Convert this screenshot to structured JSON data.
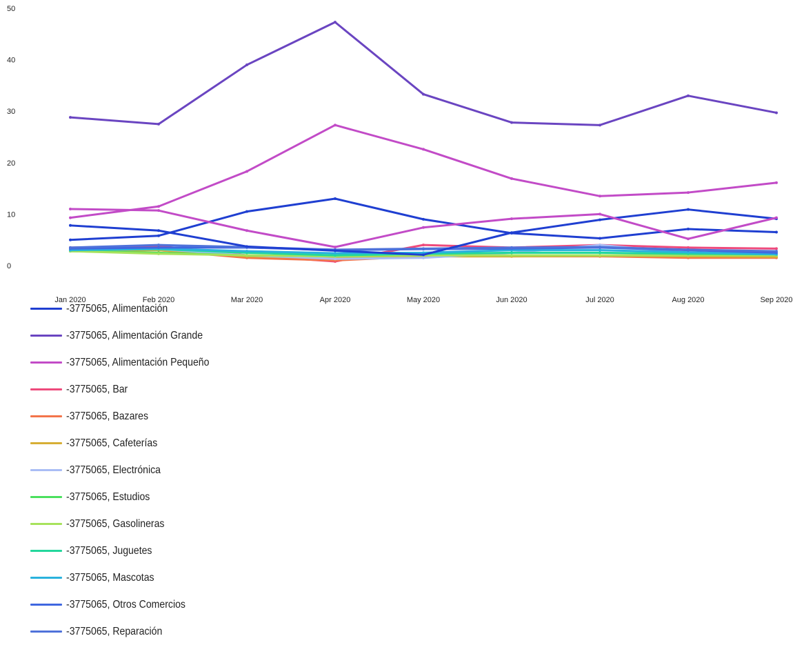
{
  "chart_data": {
    "type": "line",
    "title": "",
    "xlabel": "",
    "ylabel": "",
    "categories": [
      "Jan 2020",
      "Feb 2020",
      "Mar 2020",
      "Apr 2020",
      "May 2020",
      "Jun 2020",
      "Jul 2020",
      "Aug 2020",
      "Sep 2020"
    ],
    "y_ticks": [
      "0",
      "10",
      "20",
      "30",
      "40",
      "50"
    ],
    "ylim": [
      0,
      50
    ],
    "grid": false,
    "legend_position": "bottom-left",
    "series": [
      {
        "name": "-3775065, Alimentación",
        "color": "#1f3fd1",
        "values": [
          5,
          5.8,
          10.5,
          13,
          9,
          6.3,
          5.3,
          7.1,
          6.5
        ]
      },
      {
        "name": "-3775065, Alimentación Grande",
        "color": "#6a45c1",
        "values": [
          28.8,
          27.5,
          39,
          47.3,
          33.3,
          27.8,
          27.3,
          33,
          29.7
        ]
      },
      {
        "name": "-3775065, Alimentación Pequeño",
        "color": "#c24bc7",
        "values": [
          9.3,
          11.5,
          18.3,
          27.3,
          22.6,
          16.9,
          13.5,
          14.2,
          16.1
        ]
      },
      {
        "name": "-3775065, Bar",
        "color": "#ee4a7c",
        "values": [
          3.5,
          3.8,
          2,
          0.8,
          4,
          3.5,
          4,
          3.5,
          3.3
        ]
      },
      {
        "name": "-3775065, Bazares",
        "color": "#f3744a",
        "values": [
          3,
          3,
          1.5,
          1,
          1.8,
          1.8,
          1.8,
          1.5,
          1.5
        ]
      },
      {
        "name": "-3775065, Cafeterías",
        "color": "#d7ae35",
        "values": [
          2.8,
          3,
          1.8,
          1.5,
          1.8,
          1.8,
          1.9,
          1.8,
          1.7
        ]
      },
      {
        "name": "-3775065, Electrónica",
        "color": "#a9bdf5",
        "values": [
          3,
          3.2,
          2,
          1.3,
          1.5,
          2.5,
          4,
          2.5,
          2.2
        ]
      },
      {
        "name": "-3775065, Estudios",
        "color": "#4be05e",
        "values": [
          2.8,
          2.5,
          2,
          1.8,
          2,
          2,
          2,
          2,
          2
        ]
      },
      {
        "name": "-3775065, Gasolineras",
        "color": "#a7e25c",
        "values": [
          2.8,
          2.3,
          2,
          1.8,
          2,
          2,
          2,
          2,
          2
        ]
      },
      {
        "name": "-3775065, Juguetes",
        "color": "#23d79c",
        "values": [
          3,
          3.2,
          2.5,
          2,
          2.3,
          2.5,
          2.5,
          2.3,
          2.2
        ]
      },
      {
        "name": "-3775065, Mascotas",
        "color": "#2ab2dd",
        "values": [
          3,
          3.3,
          2.8,
          2.4,
          2.5,
          3,
          3,
          2.6,
          2.2
        ]
      },
      {
        "name": "-3775065, Otros Comercios",
        "color": "#3f67e0",
        "values": [
          3.3,
          3.5,
          3.5,
          3,
          3.2,
          3.3,
          3.5,
          3,
          2.5
        ]
      },
      {
        "name": "-3775065, Reparación",
        "color": "#4f72da",
        "values": [
          3.5,
          4,
          3.6,
          3.1,
          3.3,
          3.5,
          3.6,
          3.1,
          2.8
        ]
      },
      {
        "name": "",
        "color": "#1f3fd1",
        "values": [
          7.8,
          6.8,
          3.7,
          2.9,
          2.1,
          6.4,
          8.9,
          10.9,
          9.1
        ]
      },
      {
        "name": "",
        "color": "#c24bc7",
        "values": [
          11,
          10.7,
          6.8,
          3.6,
          7.4,
          9.1,
          10,
          5.2,
          9.3
        ]
      }
    ]
  }
}
